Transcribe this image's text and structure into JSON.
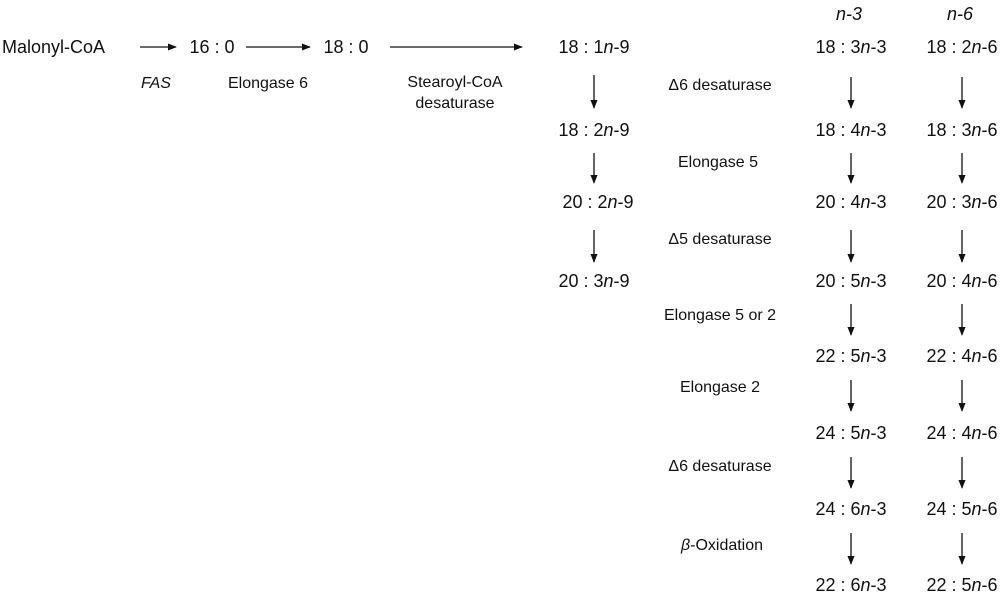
{
  "columns": {
    "n3": "n-3",
    "n6": "n-6"
  },
  "pre": {
    "malonyl": "Malonyl-CoA",
    "c16": "16 : 0",
    "c18": "18 : 0",
    "fas": "FAS",
    "elong6": "Elongase 6",
    "scd_line1": "Stearoyl-CoA",
    "scd_line2": "desaturase"
  },
  "n9": [
    {
      "pre": "18 : 1",
      "n": "n",
      "post": "-9"
    },
    {
      "pre": "18 : 2",
      "n": "n",
      "post": "-9"
    },
    {
      "pre": "20 : 2",
      "n": "n",
      "post": "-9"
    },
    {
      "pre": "20 : 3",
      "n": "n",
      "post": "-9"
    }
  ],
  "enzymes": [
    {
      "sym": "Δ",
      "rest": "6 desaturase"
    },
    {
      "sym": "",
      "rest": "Elongase 5"
    },
    {
      "sym": "Δ",
      "rest": "5 desaturase"
    },
    {
      "sym": "",
      "rest": "Elongase 5 or 2"
    },
    {
      "sym": "",
      "rest": "Elongase 2"
    },
    {
      "sym": "Δ",
      "rest": "6 desaturase"
    },
    {
      "sym": "β",
      "rest": "-Oxidation"
    }
  ],
  "n3": [
    {
      "pre": "18 : 3",
      "n": "n",
      "post": "-3"
    },
    {
      "pre": "18 : 4",
      "n": "n",
      "post": "-3"
    },
    {
      "pre": "20 : 4",
      "n": "n",
      "post": "-3"
    },
    {
      "pre": "20 : 5",
      "n": "n",
      "post": "-3"
    },
    {
      "pre": "22 : 5",
      "n": "n",
      "post": "-3"
    },
    {
      "pre": "24 : 5",
      "n": "n",
      "post": "-3"
    },
    {
      "pre": "24 : 6",
      "n": "n",
      "post": "-3"
    },
    {
      "pre": "22 : 6",
      "n": "n",
      "post": "-3"
    }
  ],
  "n6": [
    {
      "pre": "18 : 2",
      "n": "n",
      "post": "-6"
    },
    {
      "pre": "18 : 3",
      "n": "n",
      "post": "-6"
    },
    {
      "pre": "20 : 3",
      "n": "n",
      "post": "-6"
    },
    {
      "pre": "20 : 4",
      "n": "n",
      "post": "-6"
    },
    {
      "pre": "22 : 4",
      "n": "n",
      "post": "-6"
    },
    {
      "pre": "24 : 4",
      "n": "n",
      "post": "-6"
    },
    {
      "pre": "24 : 5",
      "n": "n",
      "post": "-6"
    },
    {
      "pre": "22 : 5",
      "n": "n",
      "post": "-6"
    }
  ]
}
